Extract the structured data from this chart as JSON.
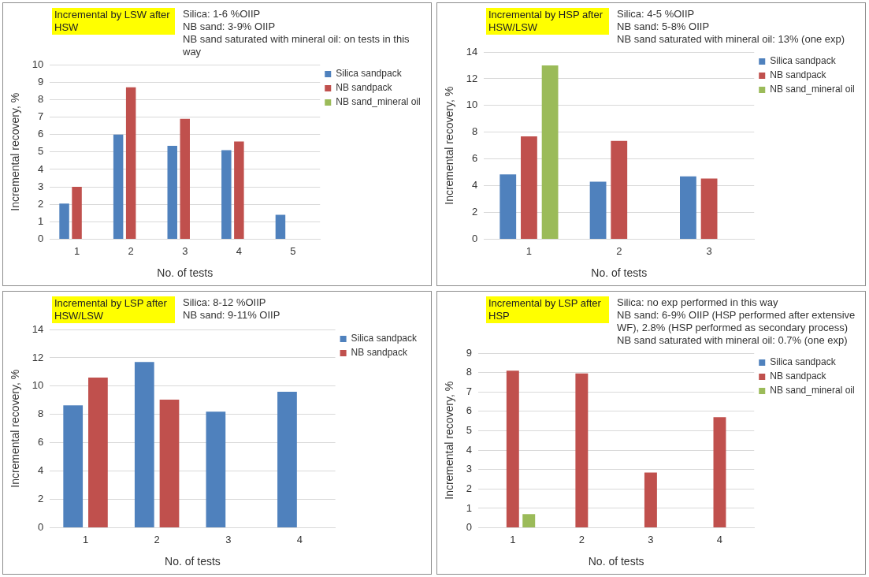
{
  "chart_data": [
    {
      "type": "bar",
      "title": "Incremental by LSW after HSW",
      "xlabel": "No. of tests",
      "ylabel": "Incremental recovery, %",
      "categories": [
        "1",
        "2",
        "3",
        "4",
        "5"
      ],
      "series": [
        {
          "name": "Silica sandpack",
          "color": "#4f81bd",
          "values": [
            2.05,
            6.0,
            5.35,
            5.1,
            1.4
          ]
        },
        {
          "name": "NB sandpack",
          "color": "#c0504d",
          "values": [
            3.0,
            8.7,
            6.9,
            5.6,
            null
          ]
        },
        {
          "name": "NB sand_mineral oil",
          "color": "#9bbb59",
          "values": [
            null,
            null,
            null,
            null,
            null
          ]
        }
      ],
      "ylim": [
        0,
        10
      ],
      "yticks": [
        0,
        1,
        2,
        3,
        4,
        5,
        6,
        7,
        8,
        9,
        10
      ],
      "grid": "y",
      "legend": "right",
      "annotations": [
        "Silica: 1-6 %OIIP",
        "NB sand: 3-9% OIIP",
        "NB sand saturated with mineral oil: on tests in this way"
      ]
    },
    {
      "type": "bar",
      "title": "Incremental by HSP after HSW/LSW",
      "xlabel": "No. of tests",
      "ylabel": "Incremental recovery, %",
      "categories": [
        "1",
        "2",
        "3"
      ],
      "series": [
        {
          "name": "Silica sandpack",
          "color": "#4f81bd",
          "values": [
            4.85,
            4.3,
            4.7
          ]
        },
        {
          "name": "NB sandpack",
          "color": "#c0504d",
          "values": [
            7.7,
            7.35,
            4.55
          ]
        },
        {
          "name": "NB sand_mineral oil",
          "color": "#9bbb59",
          "values": [
            13,
            null,
            null
          ]
        }
      ],
      "ylim": [
        0,
        14
      ],
      "yticks": [
        0,
        2,
        4,
        6,
        8,
        10,
        12,
        14
      ],
      "grid": "y",
      "legend": "right",
      "annotations": [
        "Silica: 4-5 %OIIP",
        "NB sand: 5-8% OIIP",
        "NB sand saturated with mineral oil: 13% (one exp)"
      ]
    },
    {
      "type": "bar",
      "title": "Incremental by LSP after HSW/LSW",
      "xlabel": "No. of tests",
      "ylabel": "Incremental recovery, %",
      "categories": [
        "1",
        "2",
        "3",
        "4"
      ],
      "series": [
        {
          "name": "Silica sandpack",
          "color": "#4f81bd",
          "values": [
            8.65,
            11.7,
            8.2,
            9.6
          ]
        },
        {
          "name": "NB sandpack",
          "color": "#c0504d",
          "values": [
            10.6,
            9.05,
            null,
            null
          ]
        }
      ],
      "ylim": [
        0,
        14
      ],
      "yticks": [
        0,
        2,
        4,
        6,
        8,
        10,
        12,
        14
      ],
      "grid": "y",
      "legend": "top right",
      "annotations": [
        "Silica: 8-12 %OIIP",
        "NB sand: 9-11% OIIP"
      ]
    },
    {
      "type": "bar",
      "title": "Incremental by LSP after HSP",
      "xlabel": "No. of tests",
      "ylabel": "Incremental recovery, %",
      "categories": [
        "1",
        "2",
        "3",
        "4"
      ],
      "series": [
        {
          "name": "Silica sandpack",
          "color": "#4f81bd",
          "values": [
            null,
            null,
            null,
            null
          ]
        },
        {
          "name": "NB sandpack",
          "color": "#c0504d",
          "values": [
            8.1,
            7.95,
            2.85,
            5.7
          ]
        },
        {
          "name": "NB sand_mineral oil",
          "color": "#9bbb59",
          "values": [
            0.7,
            null,
            null,
            null
          ]
        }
      ],
      "ylim": [
        0,
        9
      ],
      "yticks": [
        0,
        1,
        2,
        3,
        4,
        5,
        6,
        7,
        8,
        9
      ],
      "grid": "y",
      "legend": "right",
      "annotations": [
        "Silica: no exp performed in this way",
        "NB sand: 6-9% OIIP (HSP performed after extensive WF), 2.8% (HSP performed as secondary process)",
        "NB sand saturated with mineral oil: 0.7% (one exp)"
      ]
    }
  ]
}
